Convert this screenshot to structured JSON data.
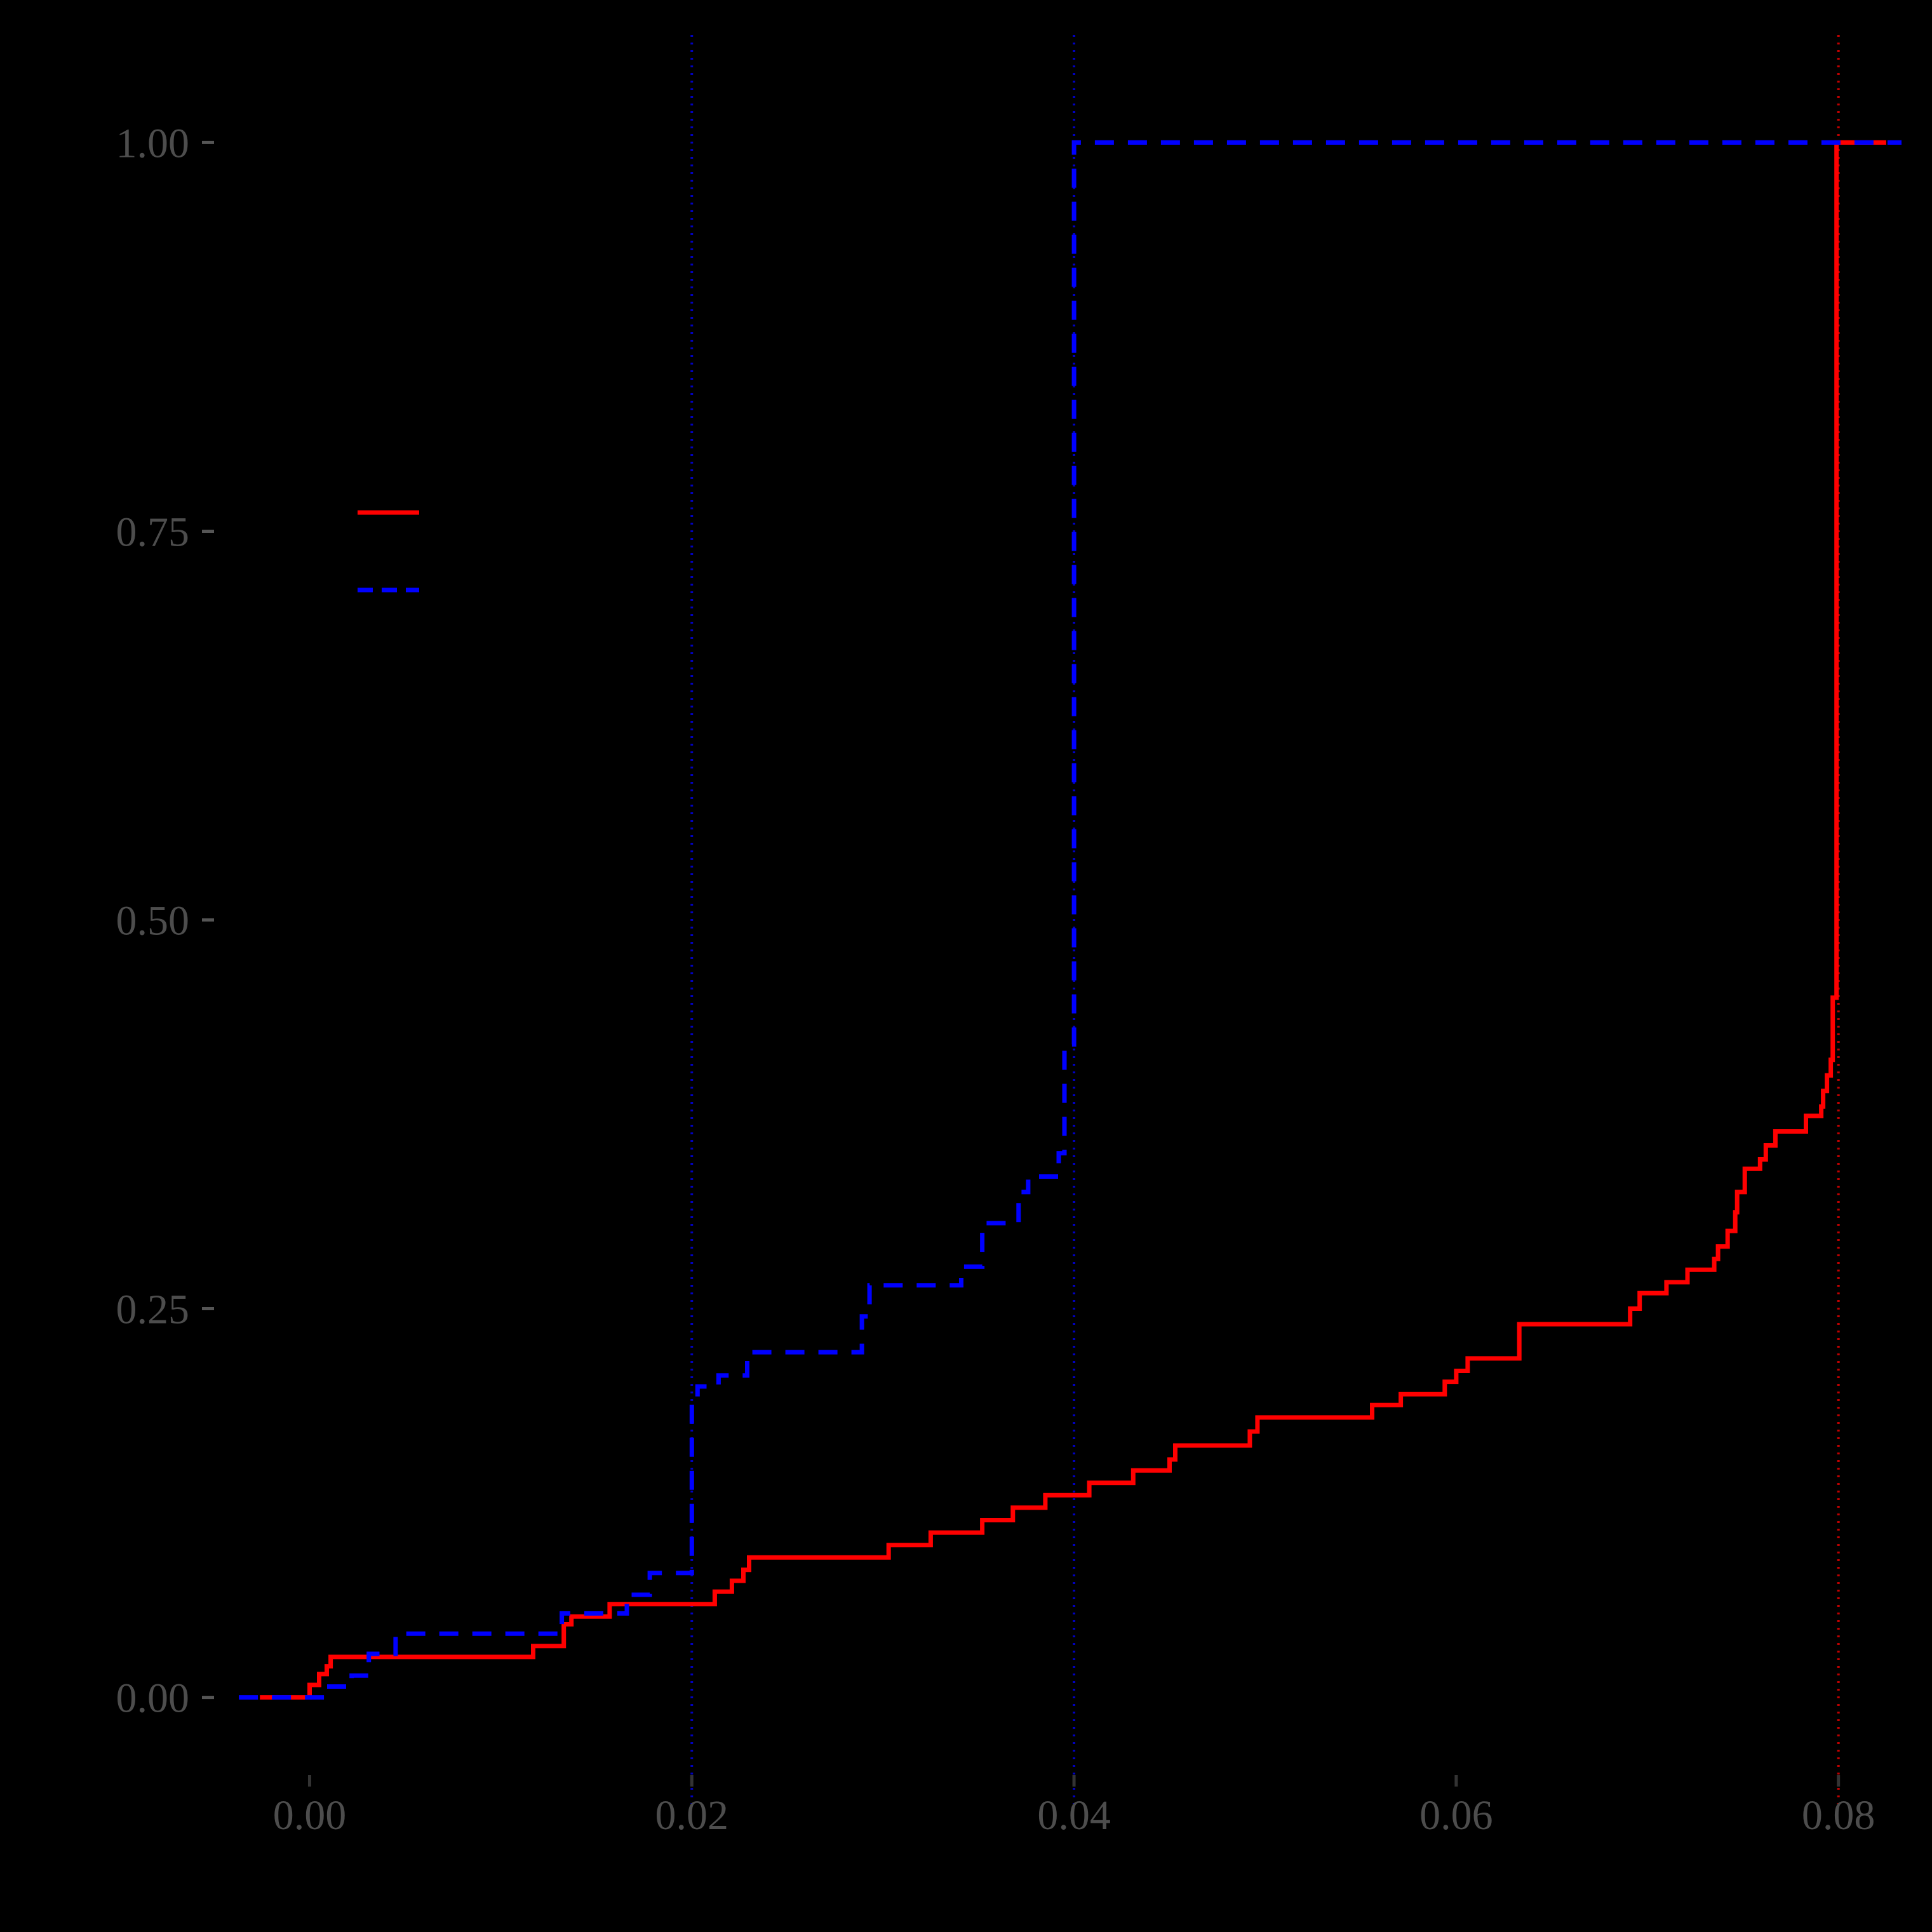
{
  "chart_data": {
    "type": "line",
    "title": "",
    "xlabel": "",
    "ylabel": "",
    "xlim": [
      -0.005,
      0.0835
    ],
    "ylim": [
      -0.05,
      1.05
    ],
    "x_ticks": [
      "0.00",
      "0.02",
      "0.04",
      "0.06",
      "0.08"
    ],
    "y_ticks": [
      "0.00",
      "0.25",
      "0.50",
      "0.75",
      "1.00"
    ],
    "grid": false,
    "background": "#000000",
    "legend_position": "upper-left",
    "reference_lines": [
      {
        "x": 0.02,
        "color": "#0000ff",
        "style": "dotted"
      },
      {
        "x": 0.04,
        "color": "#0000ff",
        "style": "dotted"
      },
      {
        "x": 0.08,
        "color": "#ff0000",
        "style": "dotted"
      }
    ],
    "series": [
      {
        "color": "#ff0000",
        "style": "solid",
        "step": true,
        "x": [
          -0.0026,
          0.0,
          0.0005,
          0.0009,
          0.0011,
          0.0117,
          0.0133,
          0.0137,
          0.0157,
          0.0212,
          0.0221,
          0.0227,
          0.023,
          0.0303,
          0.0325,
          0.0352,
          0.0368,
          0.0385,
          0.0408,
          0.0431,
          0.045,
          0.0453,
          0.0492,
          0.0496,
          0.0556,
          0.0571,
          0.0594,
          0.06,
          0.0606,
          0.0633,
          0.0691,
          0.0696,
          0.071,
          0.0721,
          0.0735,
          0.0737,
          0.0742,
          0.0746,
          0.0747,
          0.0751,
          0.0759,
          0.0762,
          0.0767,
          0.0783,
          0.0791,
          0.0792,
          0.0794,
          0.0796,
          0.0797,
          0.0799,
          0.08,
          0.0825
        ],
        "y": [
          0.0,
          0.008,
          0.015,
          0.02,
          0.026,
          0.033,
          0.047,
          0.052,
          0.06,
          0.068,
          0.075,
          0.082,
          0.09,
          0.098,
          0.106,
          0.114,
          0.122,
          0.13,
          0.138,
          0.146,
          0.153,
          0.162,
          0.171,
          0.18,
          0.188,
          0.195,
          0.203,
          0.21,
          0.218,
          0.24,
          0.25,
          0.26,
          0.267,
          0.275,
          0.282,
          0.29,
          0.3,
          0.312,
          0.325,
          0.34,
          0.346,
          0.355,
          0.364,
          0.374,
          0.38,
          0.39,
          0.4,
          0.41,
          0.45,
          1.0,
          1.0,
          1.0
        ]
      },
      {
        "color": "#0000ff",
        "style": "dashed",
        "step": true,
        "x": [
          -0.0037,
          0.0008,
          0.0022,
          0.0031,
          0.0045,
          0.0132,
          0.0166,
          0.0178,
          0.02,
          0.0203,
          0.0214,
          0.0229,
          0.0289,
          0.0293,
          0.0341,
          0.0352,
          0.0371,
          0.0376,
          0.0392,
          0.0395,
          0.04,
          0.0833
        ],
        "y": [
          0.0,
          0.007,
          0.014,
          0.028,
          0.041,
          0.054,
          0.066,
          0.08,
          0.19,
          0.2,
          0.207,
          0.222,
          0.245,
          0.265,
          0.277,
          0.305,
          0.325,
          0.335,
          0.35,
          0.42,
          1.0,
          1.0
        ]
      }
    ]
  }
}
